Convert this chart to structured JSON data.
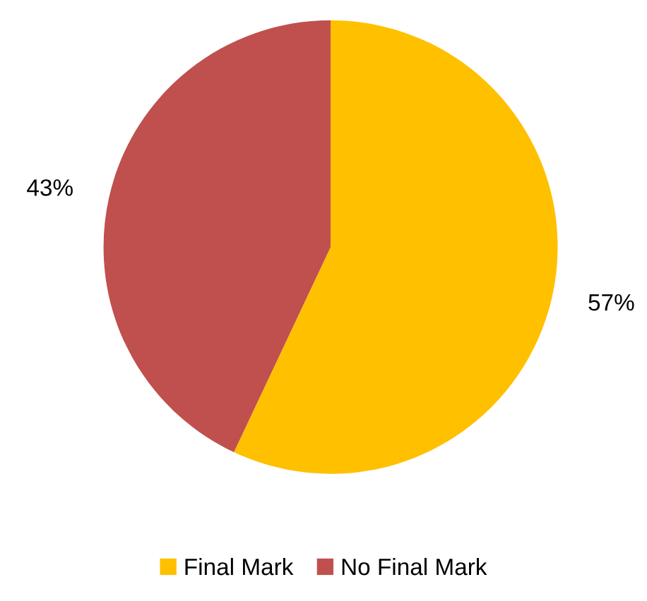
{
  "chart_data": {
    "type": "pie",
    "categories": [
      "Final Mark",
      "No Final Mark"
    ],
    "values": [
      57,
      43
    ],
    "colors": [
      "#ffc000",
      "#c0504d"
    ],
    "value_labels": [
      "57%",
      "43%"
    ],
    "legend": "bottom"
  }
}
